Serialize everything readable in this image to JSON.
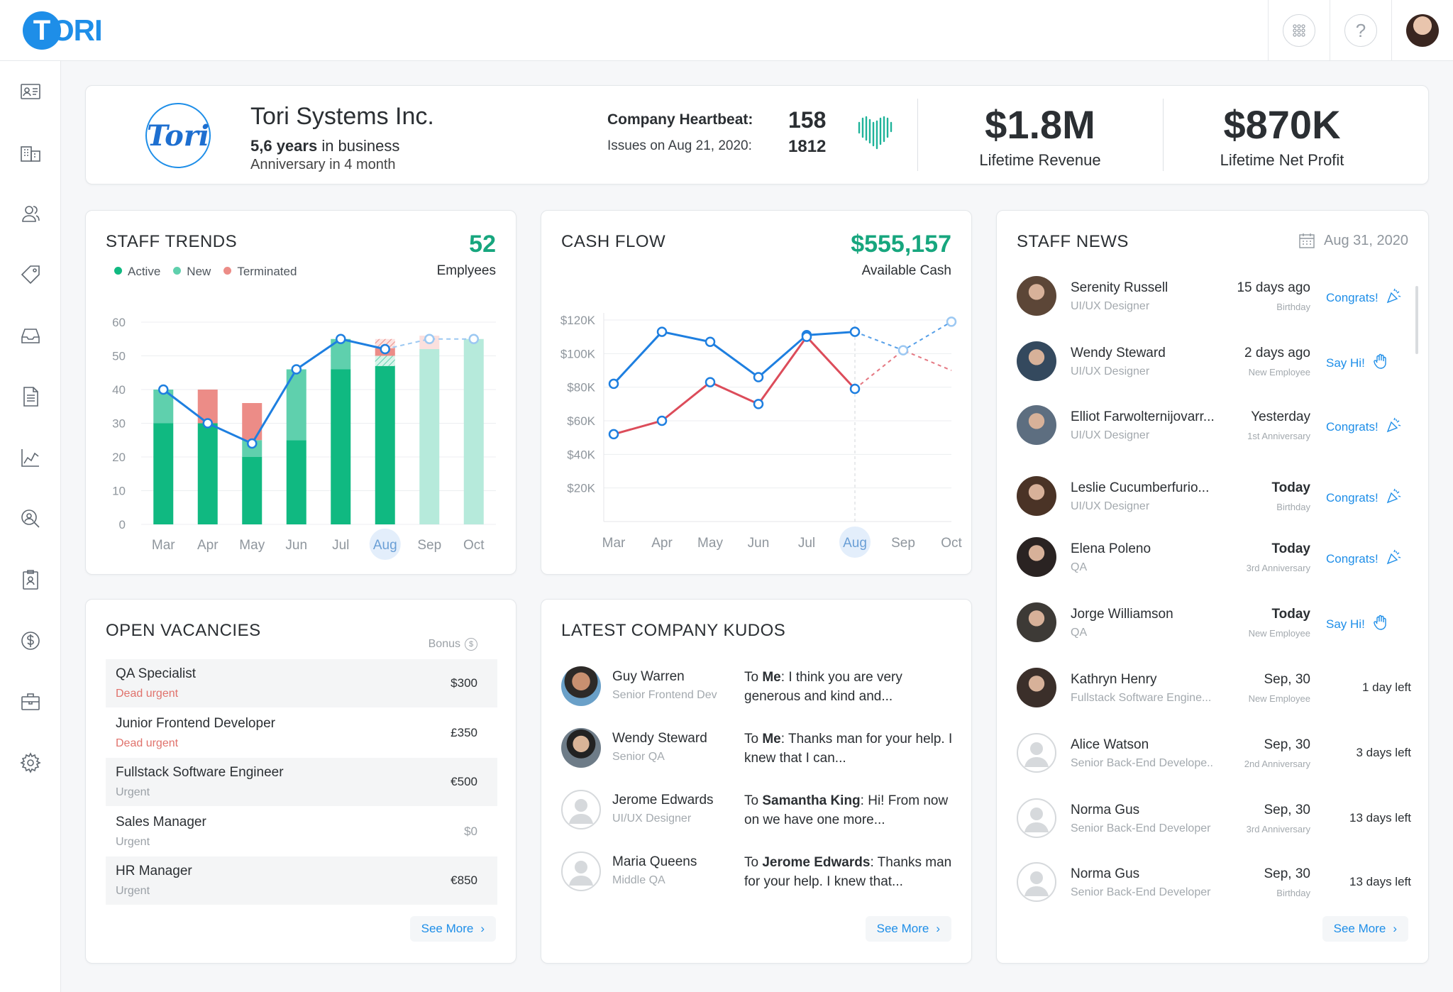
{
  "app": {
    "logo_letter": "T",
    "logo_rest": "ORI"
  },
  "topbar": {
    "apps_icon": "grid-icon",
    "help_label": "?",
    "avatar": "user-avatar"
  },
  "sidebar": {
    "items": [
      "id-card-icon",
      "building-icon",
      "people-icon",
      "tag-icon",
      "inbox-icon",
      "document-icon",
      "chart-icon",
      "search-person-icon",
      "badge-icon",
      "dollar-icon",
      "briefcase-icon",
      "gear-icon"
    ]
  },
  "company": {
    "logo_text": "Tori",
    "name": "Tori Systems Inc.",
    "years_bold": "5,6 years",
    "years_rest": " in business",
    "anniversary": "Anniversary in 4 month",
    "heartbeat_label": "Company Heartbeat:",
    "heartbeat_value": "158",
    "issues_label": "Issues on Aug 21, 2020:",
    "issues_value": "1812",
    "revenue_value": "$1.8M",
    "revenue_label": "Lifetime Revenue",
    "profit_value": "$870K",
    "profit_label": "Lifetime Net Profit"
  },
  "staff_trends": {
    "title": "STAFF TRENDS",
    "count": "52",
    "count_label": "Emplyees",
    "legend": [
      "Active",
      "New",
      "Terminated"
    ],
    "colors": {
      "active": "#10b981",
      "new": "#5fd0ad",
      "terminated": "#ec8c87",
      "line": "#1e7fe0"
    }
  },
  "cash_flow": {
    "title": "CASH FLOW",
    "amount": "$555,157",
    "amount_label": "Available Cash",
    "colors": {
      "line1": "#1e7fe0",
      "line2": "#dc4c5a"
    }
  },
  "chart_data": [
    {
      "type": "bar",
      "title": "STAFF TRENDS",
      "categories": [
        "Mar",
        "Apr",
        "May",
        "Jun",
        "Jul",
        "Aug",
        "Sep",
        "Oct"
      ],
      "ylim": [
        0,
        60
      ],
      "yticks": [
        0,
        10,
        20,
        30,
        40,
        50,
        60
      ],
      "highlighted_category": "Aug",
      "projected_from": "Sep",
      "series": [
        {
          "name": "Active",
          "values": [
            30,
            30,
            20,
            25,
            46,
            47,
            52,
            55
          ]
        },
        {
          "name": "New",
          "values": [
            10,
            0,
            5,
            21,
            9,
            3,
            0,
            0
          ]
        },
        {
          "name": "Terminated",
          "values": [
            0,
            10,
            11,
            0,
            0,
            5,
            4,
            0
          ]
        }
      ],
      "line": [
        40,
        30,
        24,
        46,
        55,
        52,
        55,
        55
      ]
    },
    {
      "type": "line",
      "title": "CASH FLOW",
      "x": [
        "Mar",
        "Apr",
        "May",
        "Jun",
        "Jul",
        "Aug",
        "Sep",
        "Oct"
      ],
      "ylim": [
        0,
        120000
      ],
      "yticks": [
        20000,
        40000,
        60000,
        80000,
        100000,
        120000
      ],
      "ytick_labels": [
        "$20K",
        "$40K",
        "$60K",
        "$80K",
        "$100K",
        "$120K"
      ],
      "highlighted_category": "Aug",
      "projected_from": "Aug",
      "series": [
        {
          "values": [
            82000,
            113000,
            107000,
            86000,
            111000,
            113000,
            102000,
            119000
          ]
        },
        {
          "values": [
            52000,
            60000,
            83000,
            70000,
            110000,
            79000,
            102000,
            90000
          ]
        }
      ]
    }
  ],
  "vacancies": {
    "title": "OPEN VACANCIES",
    "bonus_label": "Bonus",
    "rows": [
      {
        "title": "QA Specialist",
        "urgency": "Dead urgent",
        "bonus": "$300"
      },
      {
        "title": "Junior Frontend Developer",
        "urgency": "Dead urgent",
        "bonus": "£350"
      },
      {
        "title": "Fullstack Software Engineer",
        "urgency": "Urgent",
        "bonus": "€500"
      },
      {
        "title": "Sales Manager",
        "urgency": "Urgent",
        "bonus": "$0"
      },
      {
        "title": "HR Manager",
        "urgency": "Urgent",
        "bonus": "€850"
      }
    ],
    "see_more": "See More"
  },
  "kudos": {
    "title": "LATEST COMPANY KUDOS",
    "items": [
      {
        "name": "Guy Warren",
        "role": "Senior Frontend Dev",
        "to_prefix": "To ",
        "to": "Me",
        "text": ": I think you are very generous and kind and..."
      },
      {
        "name": "Wendy Steward",
        "role": "Senior QA",
        "to_prefix": "To ",
        "to": "Me",
        "text": ": Thanks man for your help. I knew that I can..."
      },
      {
        "name": "Jerome Edwards",
        "role": "UI/UX Designer",
        "to_prefix": "To ",
        "to": "Samantha King",
        "text": ": Hi! From now on we have one more..."
      },
      {
        "name": "Maria Queens",
        "role": "Middle QA",
        "to_prefix": "To ",
        "to": "Jerome Edwards",
        "text": ": Thanks man for your help. I knew that..."
      }
    ],
    "see_more": "See More"
  },
  "news": {
    "title": "STAFF  NEWS",
    "date": "Aug 31, 2020",
    "items": [
      {
        "name": "Serenity Russell",
        "role": "UI/UX Designer",
        "when": "15 days ago",
        "event": "Birthday",
        "action": "Congrats!",
        "icon": "party-popper-icon"
      },
      {
        "name": "Wendy Steward",
        "role": "UI/UX Designer",
        "when": "2 days ago",
        "event": "New Employee",
        "action": "Say Hi!",
        "icon": "wave-hand-icon"
      },
      {
        "name": "Elliot Farwolternijovarr...",
        "role": "UI/UX Designer",
        "when": "Yesterday",
        "event": "1st Anniversary",
        "action": "Congrats!",
        "icon": "party-popper-icon"
      },
      {
        "name": "Leslie Cucumberfurio...",
        "role": "UI/UX Designer",
        "when": "Today",
        "event": "Birthday",
        "action": "Congrats!",
        "icon": "party-popper-icon"
      },
      {
        "name": "Elena Poleno",
        "role": "QA",
        "when": "Today",
        "event": "3rd Anniversary",
        "action": "Congrats!",
        "icon": "party-popper-icon"
      },
      {
        "name": "Jorge Williamson",
        "role": "QA",
        "when": "Today",
        "event": "New Employee",
        "action": "Say Hi!",
        "icon": "wave-hand-icon"
      },
      {
        "name": "Kathryn Henry",
        "role": "Fullstack Software Engine...",
        "when": "Sep, 30",
        "event": "New Employee",
        "left": "1 day left"
      },
      {
        "name": "Alice Watson",
        "role": "Senior Back-End Develope..",
        "when": "Sep, 30",
        "event": "2nd Anniversary",
        "left": "3 days left"
      },
      {
        "name": "Norma Gus",
        "role": "Senior Back-End Developer",
        "when": "Sep, 30",
        "event": "3rd Anniversary",
        "left": "13 days left"
      },
      {
        "name": "Norma Gus",
        "role": "Senior Back-End Developer",
        "when": "Sep, 30",
        "event": "Birthday",
        "left": "13 days left"
      }
    ],
    "see_more": "See More"
  }
}
